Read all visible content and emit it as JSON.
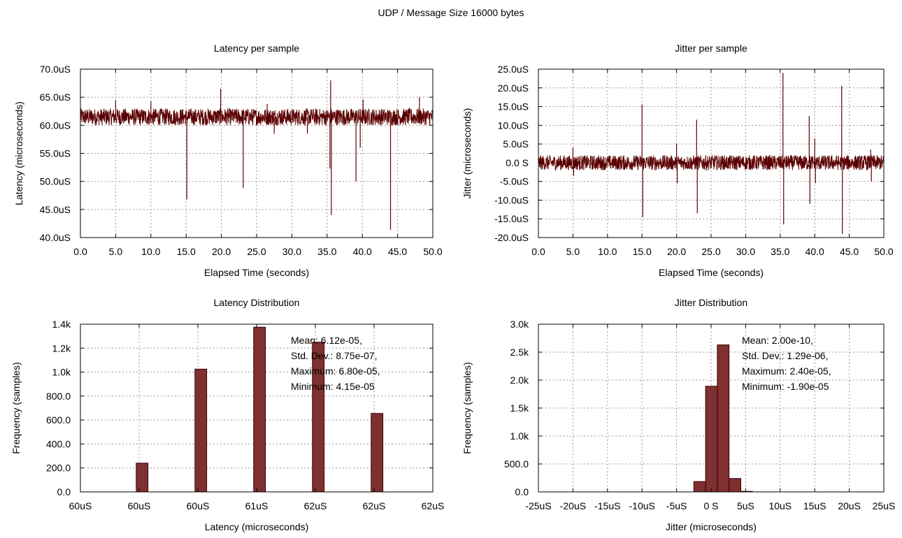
{
  "title": "UDP / Message Size 16000 bytes",
  "colors": {
    "series": "#5b0000",
    "bar": "#7f3030",
    "grid": "#9a9a9a"
  },
  "chart_data": [
    {
      "type": "line",
      "title": "Latency per sample",
      "xlabel": "Elapsed Time (seconds)",
      "ylabel": "Latency (microseconds)",
      "xlim": [
        0,
        50
      ],
      "ylim": [
        40,
        70
      ],
      "xticks": [
        "0.0",
        "5.0",
        "10.0",
        "15.0",
        "20.0",
        "25.0",
        "30.0",
        "35.0",
        "40.0",
        "45.0",
        "50.0"
      ],
      "yticks": [
        "40.0uS",
        "45.0uS",
        "50.0uS",
        "55.0uS",
        "60.0uS",
        "65.0uS",
        "70.0uS"
      ],
      "grid": true,
      "band": {
        "center": 61.5,
        "low": 60.0,
        "high": 63.0
      },
      "spikes": [
        {
          "x": 5.0,
          "y": 64.5
        },
        {
          "x": 10.0,
          "y": 64.3
        },
        {
          "x": 15.1,
          "y": 46.8
        },
        {
          "x": 19.9,
          "y": 66.5
        },
        {
          "x": 23.1,
          "y": 48.8
        },
        {
          "x": 26.5,
          "y": 63.8
        },
        {
          "x": 27.5,
          "y": 58.5
        },
        {
          "x": 32.2,
          "y": 58.5
        },
        {
          "x": 35.5,
          "y": 68.0
        },
        {
          "x": 35.6,
          "y": 44.0
        },
        {
          "x": 35.4,
          "y": 52.3
        },
        {
          "x": 39.1,
          "y": 50.0
        },
        {
          "x": 39.7,
          "y": 56.0
        },
        {
          "x": 40.1,
          "y": 64.6
        },
        {
          "x": 44.0,
          "y": 41.4
        },
        {
          "x": 48.1,
          "y": 65.0
        }
      ]
    },
    {
      "type": "line",
      "title": "Jitter per sample",
      "xlabel": "Elapsed Time (seconds)",
      "ylabel": "Jitter (microseconds)",
      "xlim": [
        0,
        50
      ],
      "ylim": [
        -20,
        25
      ],
      "xticks": [
        "0.0",
        "5.0",
        "10.0",
        "15.0",
        "20.0",
        "25.0",
        "30.0",
        "35.0",
        "40.0",
        "45.0",
        "50.0"
      ],
      "yticks": [
        "-20.0uS",
        "-15.0uS",
        "-10.0uS",
        "-5.0uS",
        "0.0 S",
        "5.0uS",
        "10.0uS",
        "15.0uS",
        "20.0uS",
        "25.0uS"
      ],
      "grid": true,
      "band": {
        "center": 0,
        "low": -2.0,
        "high": 2.0
      },
      "spikes": [
        {
          "x": 5.0,
          "y": 4.0
        },
        {
          "x": 5.1,
          "y": -3.5
        },
        {
          "x": 15.0,
          "y": 15.5
        },
        {
          "x": 15.1,
          "y": -14.5
        },
        {
          "x": 20.0,
          "y": 5.0
        },
        {
          "x": 20.1,
          "y": -5.5
        },
        {
          "x": 22.9,
          "y": 11.5
        },
        {
          "x": 23.0,
          "y": -13.5
        },
        {
          "x": 35.4,
          "y": 24.0
        },
        {
          "x": 35.5,
          "y": -16.5
        },
        {
          "x": 39.2,
          "y": 12.5
        },
        {
          "x": 39.3,
          "y": -11.0
        },
        {
          "x": 40.0,
          "y": 6.5
        },
        {
          "x": 40.1,
          "y": -5.5
        },
        {
          "x": 43.9,
          "y": 20.5
        },
        {
          "x": 44.0,
          "y": -19.0
        },
        {
          "x": 48.2,
          "y": -5.0
        },
        {
          "x": 48.1,
          "y": 3.5
        }
      ]
    },
    {
      "type": "bar",
      "title": "Latency Distribution",
      "xlabel": "Latency (microseconds)",
      "ylabel": "Frequency (samples)",
      "xlim": [
        0,
        6
      ],
      "ylim": [
        0,
        1400
      ],
      "xticks": [
        "60uS",
        "60uS",
        "60uS",
        "61uS",
        "62uS",
        "62uS",
        "62uS"
      ],
      "yticks": [
        "0.0",
        "200.0",
        "400.0",
        "600.0",
        "800.0",
        "1.0k",
        "1.2k",
        "1.4k"
      ],
      "grid": true,
      "bars": [
        {
          "x": 0.95,
          "value": 240
        },
        {
          "x": 1.95,
          "value": 1025
        },
        {
          "x": 2.95,
          "value": 1375
        },
        {
          "x": 3.95,
          "value": 1250
        },
        {
          "x": 4.95,
          "value": 655
        }
      ],
      "bar_width": 0.2,
      "annotation": [
        "Mean: 6.12e-05,",
        "Std. Dev.: 8.75e-07,",
        "Maximum: 6.80e-05,",
        "Minimum: 4.15e-05"
      ]
    },
    {
      "type": "bar",
      "title": "Jitter Distribution",
      "xlabel": "Jitter (microseconds)",
      "ylabel": "Frequency (samples)",
      "xlim": [
        -25,
        25
      ],
      "ylim": [
        0,
        3000
      ],
      "xticks": [
        "-25uS",
        "-20uS",
        "-15uS",
        "-10uS",
        "-5uS",
        "0 S",
        "5uS",
        "10uS",
        "15uS",
        "20uS",
        "25uS"
      ],
      "yticks": [
        "0.0",
        "500.0",
        "1.0k",
        "1.5k",
        "2.0k",
        "2.5k",
        "3.0k"
      ],
      "grid": true,
      "bars": [
        {
          "x": -2.5,
          "value": 185
        },
        {
          "x": -0.8,
          "value": 1890
        },
        {
          "x": 0.9,
          "value": 2630
        },
        {
          "x": 2.6,
          "value": 240
        },
        {
          "x": 4.3,
          "value": 10
        }
      ],
      "bar_width": 1.7,
      "annotation": [
        "Mean: 2.00e-10,",
        "Std. Dev.: 1.29e-06,",
        "Maximum: 2.40e-05,",
        "Minimum: -1.90e-05"
      ]
    }
  ]
}
